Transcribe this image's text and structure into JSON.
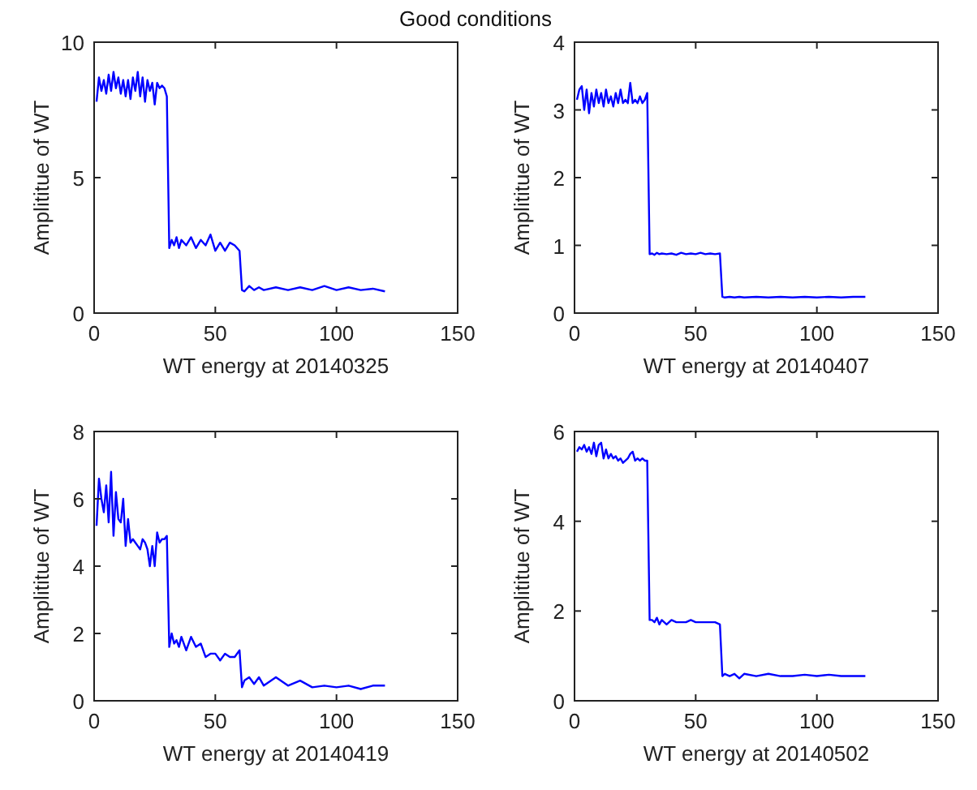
{
  "chart_data": [
    {
      "type": "line",
      "title": "Good conditions",
      "xlabel": "WT energy at 20140325",
      "ylabel": "Amplititue of WT",
      "xlim": [
        0,
        150
      ],
      "xticks": [
        0,
        50,
        100,
        150
      ],
      "ylim": [
        0,
        10
      ],
      "yticks": [
        0,
        5,
        10
      ],
      "grid": false,
      "marker": "none",
      "line_style": "solid",
      "x": [
        1,
        2,
        3,
        4,
        5,
        6,
        7,
        8,
        9,
        10,
        11,
        12,
        13,
        14,
        15,
        16,
        17,
        18,
        19,
        20,
        21,
        22,
        23,
        24,
        25,
        26,
        27,
        28,
        29,
        30,
        31,
        32,
        33,
        34,
        35,
        36,
        38,
        40,
        42,
        44,
        46,
        48,
        50,
        52,
        54,
        56,
        58,
        60,
        61,
        62,
        64,
        66,
        68,
        70,
        75,
        80,
        85,
        90,
        95,
        100,
        105,
        110,
        115,
        120
      ],
      "series": [
        {
          "color": "#0000ff",
          "values": [
            7.8,
            8.7,
            8.2,
            8.6,
            8.1,
            8.8,
            8.2,
            8.9,
            8.3,
            8.7,
            8.1,
            8.6,
            8.0,
            8.6,
            7.9,
            8.7,
            8.2,
            8.9,
            8.0,
            8.7,
            7.8,
            8.6,
            8.2,
            8.5,
            7.7,
            8.5,
            8.3,
            8.4,
            8.3,
            8.0,
            2.4,
            2.7,
            2.5,
            2.8,
            2.4,
            2.7,
            2.5,
            2.8,
            2.4,
            2.7,
            2.5,
            2.9,
            2.3,
            2.6,
            2.3,
            2.6,
            2.5,
            2.3,
            0.85,
            0.8,
            1.0,
            0.85,
            0.95,
            0.85,
            0.95,
            0.85,
            0.95,
            0.85,
            1.0,
            0.85,
            0.95,
            0.85,
            0.9,
            0.8
          ]
        }
      ]
    },
    {
      "type": "line",
      "xlabel": "WT energy at 20140407",
      "ylabel": "Amplititue of WT",
      "xlim": [
        0,
        150
      ],
      "xticks": [
        0,
        50,
        100,
        150
      ],
      "ylim": [
        0,
        4
      ],
      "yticks": [
        0,
        1,
        2,
        3,
        4
      ],
      "grid": false,
      "marker": "none",
      "line_style": "solid",
      "x": [
        1,
        2,
        3,
        4,
        5,
        6,
        7,
        8,
        9,
        10,
        11,
        12,
        13,
        14,
        15,
        16,
        17,
        18,
        19,
        20,
        21,
        22,
        23,
        24,
        25,
        26,
        27,
        28,
        29,
        30,
        31,
        32,
        33,
        34,
        35,
        36,
        38,
        40,
        42,
        44,
        46,
        48,
        50,
        52,
        54,
        56,
        58,
        60,
        61,
        62,
        64,
        66,
        68,
        70,
        75,
        80,
        85,
        90,
        95,
        100,
        105,
        110,
        115,
        120
      ],
      "series": [
        {
          "color": "#0000ff",
          "values": [
            3.15,
            3.3,
            3.35,
            3.0,
            3.3,
            2.95,
            3.25,
            3.05,
            3.3,
            3.1,
            3.25,
            3.05,
            3.3,
            3.1,
            3.2,
            3.05,
            3.25,
            3.1,
            3.3,
            3.1,
            3.15,
            3.1,
            3.4,
            3.1,
            3.15,
            3.1,
            3.2,
            3.1,
            3.15,
            3.25,
            0.87,
            0.88,
            0.86,
            0.89,
            0.87,
            0.88,
            0.87,
            0.88,
            0.86,
            0.89,
            0.87,
            0.88,
            0.87,
            0.89,
            0.87,
            0.88,
            0.87,
            0.88,
            0.24,
            0.23,
            0.24,
            0.23,
            0.24,
            0.23,
            0.24,
            0.23,
            0.24,
            0.23,
            0.24,
            0.23,
            0.24,
            0.23,
            0.24,
            0.24
          ]
        }
      ]
    },
    {
      "type": "line",
      "xlabel": "WT energy at 20140419",
      "ylabel": "Amplititue of WT",
      "xlim": [
        0,
        150
      ],
      "xticks": [
        0,
        50,
        100,
        150
      ],
      "ylim": [
        0,
        8
      ],
      "yticks": [
        0,
        2,
        4,
        6,
        8
      ],
      "grid": false,
      "marker": "none",
      "line_style": "solid",
      "x": [
        1,
        2,
        3,
        4,
        5,
        6,
        7,
        8,
        9,
        10,
        11,
        12,
        13,
        14,
        15,
        16,
        17,
        18,
        19,
        20,
        21,
        22,
        23,
        24,
        25,
        26,
        27,
        28,
        29,
        30,
        31,
        32,
        33,
        34,
        35,
        36,
        38,
        40,
        42,
        44,
        46,
        48,
        50,
        52,
        54,
        56,
        58,
        60,
        61,
        62,
        64,
        66,
        68,
        70,
        75,
        80,
        85,
        90,
        95,
        100,
        105,
        110,
        115,
        120
      ],
      "series": [
        {
          "color": "#0000ff",
          "values": [
            5.2,
            6.6,
            6.0,
            5.6,
            6.4,
            5.3,
            6.8,
            4.9,
            6.2,
            5.4,
            5.3,
            6.0,
            4.6,
            5.4,
            4.7,
            4.8,
            4.7,
            4.6,
            4.5,
            4.8,
            4.7,
            4.5,
            4.0,
            4.6,
            4.0,
            5.0,
            4.7,
            4.8,
            4.8,
            4.9,
            1.6,
            2.0,
            1.7,
            1.8,
            1.6,
            1.9,
            1.5,
            1.9,
            1.6,
            1.7,
            1.3,
            1.4,
            1.4,
            1.2,
            1.4,
            1.3,
            1.3,
            1.5,
            0.4,
            0.6,
            0.7,
            0.5,
            0.7,
            0.45,
            0.7,
            0.45,
            0.6,
            0.4,
            0.45,
            0.4,
            0.45,
            0.35,
            0.45,
            0.45
          ]
        }
      ]
    },
    {
      "type": "line",
      "xlabel": "WT energy at 20140502",
      "ylabel": "Amplititue of WT",
      "xlim": [
        0,
        150
      ],
      "xticks": [
        0,
        50,
        100,
        150
      ],
      "ylim": [
        0,
        6
      ],
      "yticks": [
        0,
        2,
        4,
        6
      ],
      "grid": false,
      "marker": "none",
      "line_style": "solid",
      "x": [
        1,
        2,
        3,
        4,
        5,
        6,
        7,
        8,
        9,
        10,
        11,
        12,
        13,
        14,
        15,
        16,
        17,
        18,
        19,
        20,
        21,
        22,
        23,
        24,
        25,
        26,
        27,
        28,
        29,
        30,
        31,
        32,
        33,
        34,
        35,
        36,
        38,
        40,
        42,
        44,
        46,
        48,
        50,
        52,
        54,
        56,
        58,
        60,
        61,
        62,
        64,
        66,
        68,
        70,
        75,
        80,
        85,
        90,
        95,
        100,
        105,
        110,
        115,
        120
      ],
      "series": [
        {
          "color": "#0000ff",
          "values": [
            5.55,
            5.65,
            5.6,
            5.7,
            5.55,
            5.65,
            5.5,
            5.75,
            5.45,
            5.7,
            5.75,
            5.4,
            5.6,
            5.4,
            5.5,
            5.4,
            5.45,
            5.35,
            5.4,
            5.3,
            5.35,
            5.4,
            5.5,
            5.55,
            5.35,
            5.4,
            5.35,
            5.4,
            5.35,
            5.35,
            1.8,
            1.8,
            1.75,
            1.85,
            1.7,
            1.8,
            1.7,
            1.8,
            1.75,
            1.75,
            1.75,
            1.8,
            1.75,
            1.75,
            1.75,
            1.75,
            1.75,
            1.7,
            0.55,
            0.6,
            0.55,
            0.6,
            0.5,
            0.6,
            0.55,
            0.6,
            0.55,
            0.55,
            0.58,
            0.55,
            0.58,
            0.55,
            0.55,
            0.55
          ]
        }
      ]
    }
  ]
}
